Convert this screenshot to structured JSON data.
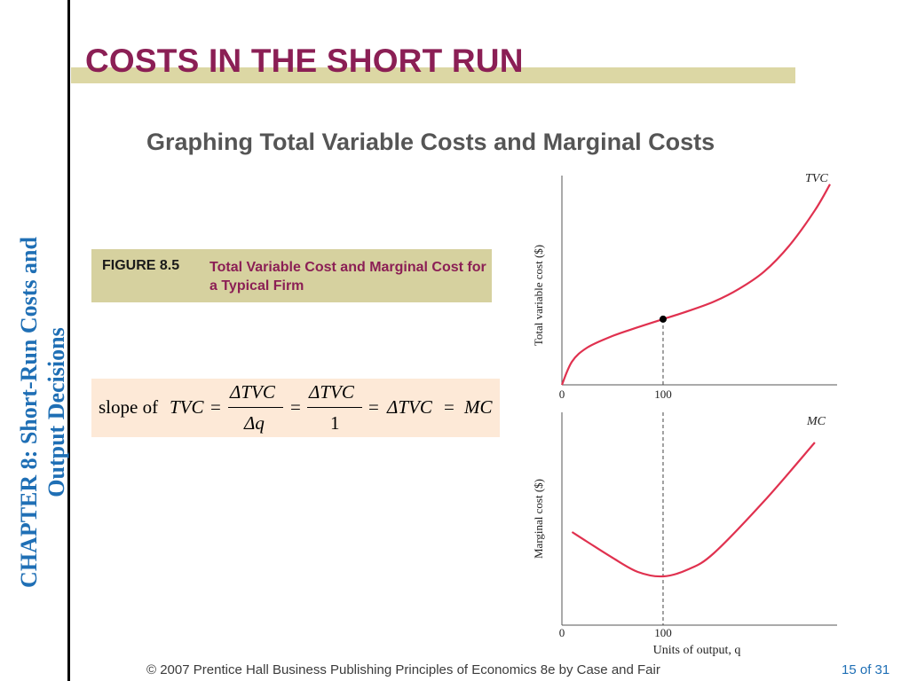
{
  "slide": {
    "title": "COSTS IN THE SHORT RUN",
    "subtitle": "Graphing Total Variable Costs and Marginal Costs",
    "chapter_label": "CHAPTER 8:",
    "chapter_title_line1": "Short-Run Costs and",
    "chapter_title_line2": "Output Decisions"
  },
  "figure": {
    "label": "FIGURE 8.5",
    "caption": "Total Variable Cost and Marginal Cost for a Typical Firm"
  },
  "formula": {
    "prefix": "slope of",
    "tvc": "TVC",
    "equals": "=",
    "delta_tvc": "ΔTVC",
    "delta_q": "Δq",
    "one": "1",
    "mc": "MC"
  },
  "chart_data": [
    {
      "type": "line",
      "title": "",
      "xlabel": "",
      "ylabel": "Total variable cost ($)",
      "x_ticks": [
        "0",
        "100"
      ],
      "series": [
        {
          "name": "TVC",
          "x": [
            0,
            10,
            25,
            50,
            75,
            100,
            125,
            150,
            175,
            200,
            225,
            250,
            265
          ],
          "y": [
            0,
            40,
            64,
            84,
            99,
            113,
            127,
            143,
            165,
            195,
            240,
            300,
            345
          ]
        }
      ],
      "highlight_point": {
        "x": 100,
        "y": 113
      },
      "xlim": [
        0,
        272
      ],
      "ylim": [
        0,
        360
      ],
      "color": "#e0314f"
    },
    {
      "type": "line",
      "title": "",
      "xlabel": "Units of output, q",
      "ylabel": "Marginal cost ($)",
      "x_ticks": [
        "0",
        "100"
      ],
      "series": [
        {
          "name": "MC",
          "x": [
            10,
            25,
            50,
            75,
            100,
            125,
            150,
            200,
            250
          ],
          "y": [
            105,
            94,
            76,
            60,
            55,
            63,
            81,
            140,
            206
          ]
        }
      ],
      "xlim": [
        0,
        272
      ],
      "ylim": [
        0,
        240
      ],
      "color": "#e0314f"
    }
  ],
  "footer": {
    "copyright": "© 2007 Prentice Hall Business Publishing   Principles of Economics 8e by Case and Fair",
    "page": "15 of 31"
  }
}
